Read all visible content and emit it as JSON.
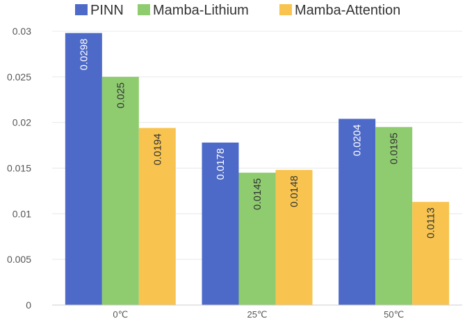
{
  "chart_data": {
    "type": "bar",
    "title": "",
    "xlabel": "",
    "ylabel": "",
    "categories": [
      "0℃",
      "25℃",
      "50℃"
    ],
    "series": [
      {
        "name": "PINN",
        "values": [
          0.0298,
          0.0178,
          0.0204
        ],
        "color": "#4e6ac8",
        "label_color": "#ffffff"
      },
      {
        "name": "Mamba-Lithium",
        "values": [
          0.025,
          0.0145,
          0.0195
        ],
        "color": "#8fcc70",
        "label_color": "#333333"
      },
      {
        "name": "Mamba-Attention",
        "values": [
          0.0194,
          0.0148,
          0.0113
        ],
        "color": "#f8c44f",
        "label_color": "#333333"
      }
    ],
    "ylim": [
      0,
      0.03
    ],
    "yticks": [
      "0",
      "0.005",
      "0.01",
      "0.015",
      "0.02",
      "0.025",
      "0.03"
    ],
    "ytick_values": [
      0,
      0.005,
      0.01,
      0.015,
      0.02,
      0.025,
      0.03
    ],
    "data_labels": [
      [
        "0.0298",
        "0.0178",
        "0.0204"
      ],
      [
        "0.025",
        "0.0145",
        "0.0195"
      ],
      [
        "0.0194",
        "0.0148",
        "0.0113"
      ]
    ],
    "grid": true,
    "legend_position": "top"
  }
}
